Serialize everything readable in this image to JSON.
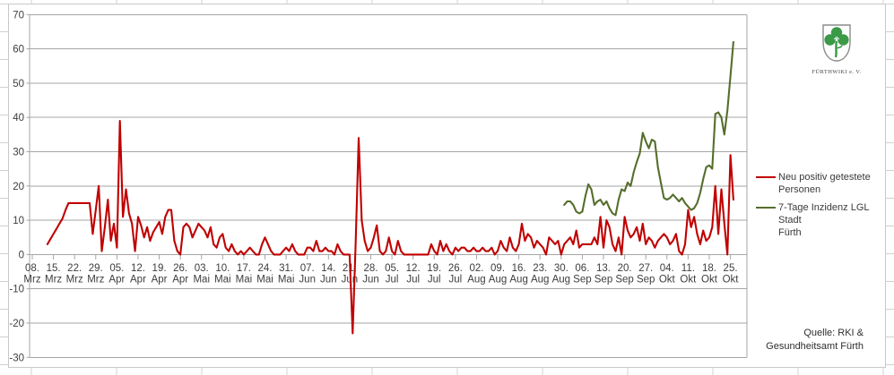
{
  "chart_data": {
    "type": "line",
    "title": "",
    "xlabel": "",
    "ylabel": "",
    "ylim": [
      -30,
      70
    ],
    "y_ticks": [
      70,
      60,
      50,
      40,
      30,
      20,
      10,
      0,
      -10,
      -20,
      -30
    ],
    "grid": true,
    "legend_position": "right",
    "x_tick_interval_days": 7,
    "x_tick_labels": [
      "08. Mrz",
      "15. Mrz",
      "22. Mrz",
      "29. Mrz",
      "05. Apr",
      "12. Apr",
      "19. Apr",
      "26. Apr",
      "03. Mai",
      "10. Mai",
      "17. Mai",
      "24. Mai",
      "31. Mai",
      "07. Jun",
      "14. Jun",
      "21. Jun",
      "28. Jun",
      "05. Jul",
      "12. Jul",
      "19. Jul",
      "26. Jul",
      "02. Aug",
      "09. Aug",
      "16. Aug",
      "23. Aug",
      "30. Aug",
      "06. Sep",
      "13. Sep",
      "20. Sep",
      "27. Sep",
      "04. Okt",
      "11. Okt",
      "18. Okt",
      "25. Okt"
    ],
    "series": [
      {
        "name": "Neu positiv getestete Personen",
        "color": "#C00000",
        "start_day_offset": 5,
        "values": [
          3,
          4.5,
          6,
          7.5,
          9,
          10.5,
          13,
          15,
          15,
          15,
          15,
          15,
          15,
          15,
          15,
          6,
          13,
          20,
          1,
          8,
          16,
          4,
          9,
          2,
          39,
          11,
          19,
          12,
          9,
          1,
          11,
          8.5,
          5,
          8,
          4,
          6.5,
          8,
          9.5,
          6,
          11,
          13,
          13,
          4,
          1,
          0,
          8,
          9,
          8,
          5,
          7,
          9,
          8,
          7,
          5,
          8,
          3,
          2,
          5,
          6,
          2,
          1,
          3,
          1,
          0,
          1,
          0,
          1,
          2,
          1,
          0,
          0,
          3,
          5,
          3,
          1,
          0,
          0,
          0,
          1,
          2,
          1,
          3,
          1,
          0,
          0,
          0,
          2,
          2,
          1,
          4,
          1,
          1,
          2,
          1,
          1,
          0,
          3,
          1,
          0,
          0,
          0,
          -23,
          3,
          34,
          10,
          4,
          1,
          2,
          5,
          8.5,
          1,
          0,
          1,
          5,
          1,
          0,
          4,
          1,
          0,
          0,
          0,
          0,
          0,
          0,
          0,
          0,
          0,
          3,
          1,
          0,
          4,
          1,
          3,
          1,
          0,
          2,
          1,
          2,
          2,
          1,
          1,
          2,
          1,
          1,
          2,
          1,
          1,
          2,
          0,
          1,
          4,
          2,
          1,
          5,
          2,
          1,
          3,
          9,
          4,
          6,
          5,
          2,
          4,
          3,
          2,
          0,
          5,
          4,
          3,
          4,
          0,
          3,
          4,
          5,
          3,
          7,
          2,
          3,
          3,
          3,
          3,
          5,
          3,
          11,
          2,
          10,
          8,
          3,
          1,
          5,
          0,
          11,
          7,
          5,
          6,
          8,
          4,
          9,
          3,
          5,
          4,
          2,
          4,
          5,
          6,
          5,
          3,
          4,
          6,
          1,
          0,
          3,
          13,
          8,
          11,
          6,
          3,
          7,
          4,
          5,
          8,
          20,
          6,
          19,
          9,
          0,
          29,
          16
        ]
      },
      {
        "name": "7-Tage Inzidenz LGL Stadt Fürth",
        "color": "#566E2C",
        "start_day_offset": 176,
        "values": [
          14.5,
          15.5,
          15.5,
          14.5,
          12.5,
          12,
          12.5,
          17,
          20.5,
          19,
          14.5,
          15.5,
          16,
          14.5,
          15.5,
          13.5,
          12,
          11.5,
          16,
          19,
          18.5,
          21,
          20,
          24,
          27,
          29.5,
          35.5,
          33,
          31,
          33.5,
          33,
          25.5,
          21,
          16.5,
          16,
          16.5,
          17.5,
          16.5,
          15.5,
          16.5,
          15,
          14,
          13,
          13.5,
          15,
          18,
          22,
          25.5,
          26,
          25,
          41,
          41.5,
          40,
          35,
          42,
          52,
          62
        ]
      }
    ]
  },
  "legend": {
    "items": [
      {
        "color": "#C00000",
        "lines": [
          "Neu positiv getestete",
          "Personen"
        ]
      },
      {
        "color": "#566E2C",
        "lines": [
          "7-Tage Inzidenz LGL Stadt",
          "Fürth"
        ]
      }
    ]
  },
  "logo": {
    "caption": "FÜRTHWIKI e. V."
  },
  "source": {
    "line1": "Quelle: RKI &",
    "line2": "Gesundheitsamt Fürth"
  },
  "colors": {
    "red_series": "#C00000",
    "green_series": "#566E2C",
    "gridline": "#A6A6A6",
    "axis_text": "#3D3D3D",
    "chart_border": "#C8C8C8",
    "sheet_grid": "#D0D0D0",
    "clover_green": "#3A9A47"
  }
}
